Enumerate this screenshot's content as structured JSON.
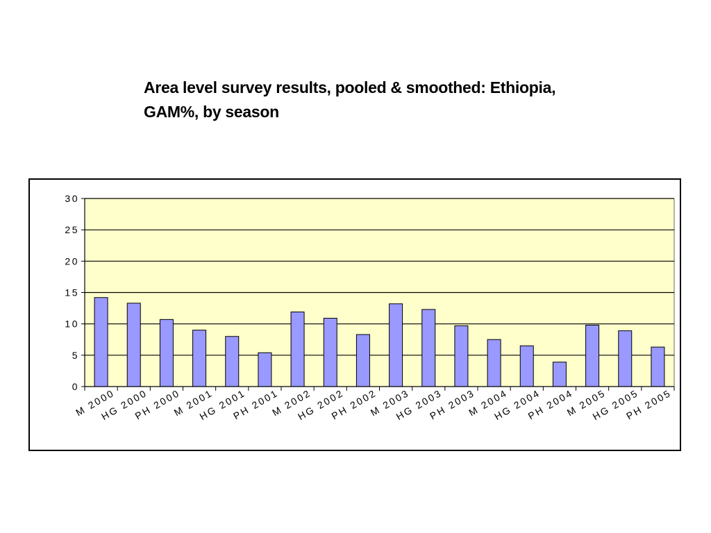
{
  "page": {
    "title_line1": "Area level survey results, pooled & smoothed: Ethiopia,",
    "title_line2": "GAM%, by season"
  },
  "chart_data": {
    "type": "bar",
    "title": "",
    "xlabel": "",
    "ylabel": "",
    "ylim": [
      0,
      30
    ],
    "yticks": [
      "0",
      "5",
      "10",
      "15",
      "20",
      "25",
      "30"
    ],
    "grid": true,
    "legend": "none",
    "colors": {
      "plot_background": "#ffffcc",
      "bar_fill": "#9999ff",
      "bar_stroke": "#000000",
      "gridline": "#000000"
    },
    "categories": [
      "M 2000",
      "HG 2000",
      "PH 2000",
      "M 2001",
      "HG 2001",
      "PH 2001",
      "M 2002",
      "HG 2002",
      "PH 2002",
      "M 2003",
      "HG 2003",
      "PH 2003",
      "M 2004",
      "HG 2004",
      "PH 2004",
      "M 2005",
      "HG 2005",
      "PH 2005"
    ],
    "values": [
      14.2,
      13.3,
      10.7,
      9.0,
      8.0,
      5.4,
      11.9,
      10.9,
      8.3,
      13.2,
      12.3,
      9.7,
      7.5,
      6.5,
      3.9,
      9.8,
      8.9,
      6.3
    ]
  }
}
